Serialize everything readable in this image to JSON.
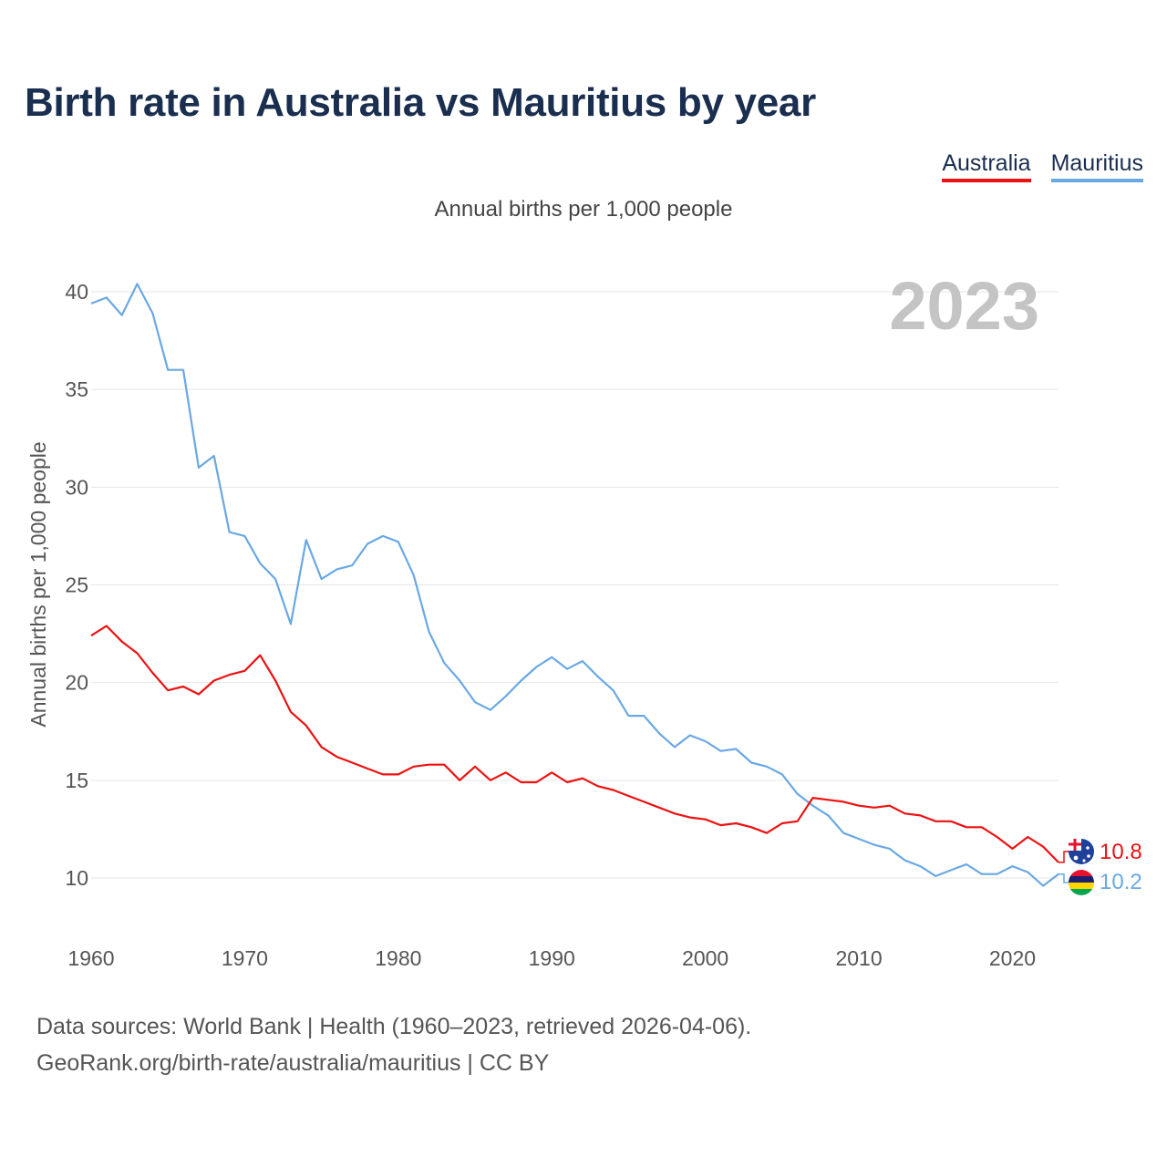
{
  "header": {
    "title": "Birth rate in Australia vs Mauritius by year",
    "subtitle": "Annual births per 1,000 people"
  },
  "legend": {
    "items": [
      {
        "label": "Australia",
        "color": "#ee1111"
      },
      {
        "label": "Mauritius",
        "color": "#6aa8e4"
      }
    ]
  },
  "chart_data": {
    "type": "line",
    "title": "Birth rate in Australia vs Mauritius by year",
    "ylabel": "Annual births per 1,000 people",
    "xlabel": "",
    "year_watermark": "2023",
    "xlim": [
      1960,
      2023
    ],
    "ylim": [
      7.5,
      41.5
    ],
    "x_ticks": [
      1960,
      1970,
      1980,
      1990,
      2000,
      2010,
      2020
    ],
    "y_ticks": [
      10,
      15,
      20,
      25,
      30,
      35,
      40
    ],
    "grid": true,
    "legend_position": "top-right",
    "x": [
      1960,
      1961,
      1962,
      1963,
      1964,
      1965,
      1966,
      1967,
      1968,
      1969,
      1970,
      1971,
      1972,
      1973,
      1974,
      1975,
      1976,
      1977,
      1978,
      1979,
      1980,
      1981,
      1982,
      1983,
      1984,
      1985,
      1986,
      1987,
      1988,
      1989,
      1990,
      1991,
      1992,
      1993,
      1994,
      1995,
      1996,
      1997,
      1998,
      1999,
      2000,
      2001,
      2002,
      2003,
      2004,
      2005,
      2006,
      2007,
      2008,
      2009,
      2010,
      2011,
      2012,
      2013,
      2014,
      2015,
      2016,
      2017,
      2018,
      2019,
      2020,
      2021,
      2022,
      2023
    ],
    "series": [
      {
        "name": "Australia",
        "color": "#ee1111",
        "end_label": "10.8",
        "values": [
          22.4,
          22.9,
          22.1,
          21.5,
          20.5,
          19.6,
          19.8,
          19.4,
          20.1,
          20.4,
          20.6,
          21.4,
          20.1,
          18.5,
          17.8,
          16.7,
          16.2,
          15.9,
          15.6,
          15.3,
          15.3,
          15.7,
          15.8,
          15.8,
          15.0,
          15.7,
          15.0,
          15.4,
          14.9,
          14.9,
          15.4,
          14.9,
          15.1,
          14.7,
          14.5,
          14.2,
          13.9,
          13.6,
          13.3,
          13.1,
          13.0,
          12.7,
          12.8,
          12.6,
          12.3,
          12.8,
          12.9,
          14.1,
          14.0,
          13.9,
          13.7,
          13.6,
          13.7,
          13.3,
          13.2,
          12.9,
          12.9,
          12.6,
          12.6,
          12.1,
          11.5,
          12.1,
          11.6,
          10.8
        ]
      },
      {
        "name": "Mauritius",
        "color": "#6aa8e4",
        "end_label": "10.2",
        "values": [
          39.4,
          39.7,
          38.8,
          40.4,
          38.9,
          36.0,
          36.0,
          31.0,
          31.6,
          27.7,
          27.5,
          26.1,
          25.3,
          23.0,
          27.3,
          25.3,
          25.8,
          26.0,
          27.1,
          27.5,
          27.2,
          25.5,
          22.6,
          21.0,
          20.1,
          19.0,
          18.6,
          19.3,
          20.1,
          20.8,
          21.3,
          20.7,
          21.1,
          20.3,
          19.6,
          18.3,
          18.3,
          17.4,
          16.7,
          17.3,
          17.0,
          16.5,
          16.6,
          15.9,
          15.7,
          15.3,
          14.3,
          13.7,
          13.2,
          12.3,
          12.0,
          11.7,
          11.5,
          10.9,
          10.6,
          10.1,
          10.4,
          10.7,
          10.2,
          10.2,
          10.6,
          10.3,
          9.6,
          10.2
        ]
      }
    ]
  },
  "footer": {
    "line1": "Data sources: World Bank | Health (1960–2023, retrieved 2026-04-06).",
    "line2": "GeoRank.org/birth-rate/australia/mauritius | CC BY"
  },
  "colors": {
    "title": "#1a2e4f",
    "grid": "#e6e6e6",
    "axis_text": "#555555",
    "watermark": "#c4c4c4"
  }
}
